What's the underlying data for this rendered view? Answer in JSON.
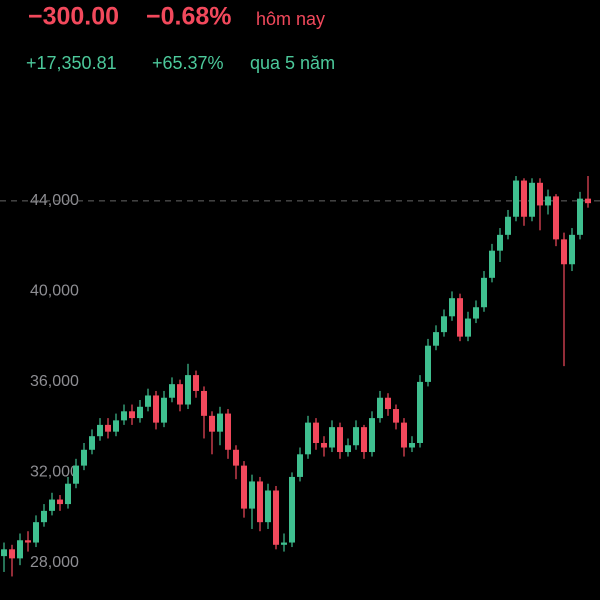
{
  "chart_data": {
    "type": "candlestick",
    "header": {
      "change": "−300.00",
      "change_pct": "−0.68%",
      "period": "hôm nay"
    },
    "subheader": {
      "change": "+17,350.81",
      "change_pct": "+65.37%",
      "period": "qua 5 năm"
    },
    "up_color": "#3fbf8f",
    "down_color": "#f2495c",
    "ylim": [
      26360,
      52880
    ],
    "yticks": [
      {
        "value": 28000,
        "label": "28,000"
      },
      {
        "value": 32000,
        "label": "32,000"
      },
      {
        "value": 36000,
        "label": "36,000"
      },
      {
        "value": 40000,
        "label": "40,000"
      },
      {
        "value": 44000,
        "label": "44,000"
      }
    ],
    "reference_line": 44000,
    "open": [
      28300,
      28600,
      28200,
      29000,
      28900,
      29800,
      30300,
      30800,
      30600,
      31500,
      32300,
      33000,
      33600,
      34100,
      33800,
      34300,
      34700,
      34400,
      34900,
      35400,
      34200,
      35300,
      35900,
      35000,
      36300,
      35600,
      34500,
      33800,
      34600,
      33000,
      32300,
      30400,
      31600,
      29800,
      31200,
      28800,
      28900,
      31800,
      32800,
      34200,
      33300,
      33100,
      34000,
      32900,
      33200,
      34000,
      32900,
      34400,
      35300,
      34800,
      34200,
      33100,
      33300,
      36000,
      37600,
      38200,
      38900,
      39700,
      38000,
      38800,
      39300,
      40600,
      41800,
      42500,
      43300,
      44900,
      43300,
      44800,
      43800,
      44200,
      42300,
      41200,
      42500,
      44100
    ],
    "high": [
      28900,
      28800,
      29300,
      29400,
      30100,
      30600,
      31100,
      31000,
      31800,
      32600,
      33300,
      33900,
      34400,
      34400,
      34600,
      35000,
      35000,
      35200,
      35700,
      35600,
      35600,
      36200,
      36100,
      36800,
      36500,
      35800,
      34700,
      34900,
      34800,
      33200,
      32500,
      31900,
      31800,
      31500,
      31400,
      29300,
      32000,
      33100,
      34500,
      34400,
      33600,
      34300,
      34200,
      33500,
      34300,
      34100,
      34700,
      35600,
      35500,
      35000,
      34400,
      33600,
      36300,
      37900,
      38500,
      39200,
      40000,
      39900,
      39100,
      39600,
      40900,
      42100,
      42800,
      43600,
      45100,
      45000,
      45000,
      45000,
      44500,
      44300,
      42600,
      42800,
      44400,
      45100
    ],
    "low": [
      27600,
      27400,
      27900,
      28500,
      28700,
      29600,
      30100,
      30300,
      30400,
      31300,
      32100,
      32800,
      33400,
      33500,
      33600,
      34100,
      34100,
      34200,
      34700,
      33900,
      34000,
      35100,
      34700,
      34800,
      35300,
      33500,
      32800,
      33200,
      32600,
      31700,
      30000,
      29500,
      29400,
      29500,
      28600,
      28500,
      28700,
      31600,
      32600,
      33000,
      32700,
      32900,
      32600,
      32700,
      33000,
      32600,
      32700,
      34200,
      34500,
      33900,
      32700,
      32900,
      33100,
      35800,
      37400,
      38000,
      38700,
      37800,
      37800,
      38600,
      39100,
      40400,
      41300,
      42300,
      43100,
      42900,
      43100,
      42700,
      43400,
      42000,
      36700,
      40900,
      42300,
      43700
    ],
    "close": [
      28600,
      28200,
      29000,
      28900,
      29800,
      30300,
      30800,
      30600,
      31500,
      32300,
      33000,
      33600,
      34100,
      33800,
      34300,
      34700,
      34400,
      34900,
      35400,
      34200,
      35300,
      35900,
      35000,
      36300,
      35600,
      34500,
      33800,
      34600,
      33000,
      32300,
      30400,
      31600,
      29800,
      31200,
      28800,
      28900,
      31800,
      32800,
      34200,
      33300,
      33100,
      34000,
      32900,
      33200,
      34000,
      32900,
      34400,
      35300,
      34800,
      34200,
      33100,
      33300,
      36000,
      37600,
      38200,
      38900,
      39700,
      38000,
      38800,
      39300,
      40600,
      41800,
      42500,
      43300,
      44900,
      43300,
      44800,
      43800,
      44200,
      42300,
      41200,
      42500,
      44100,
      43900
    ]
  }
}
